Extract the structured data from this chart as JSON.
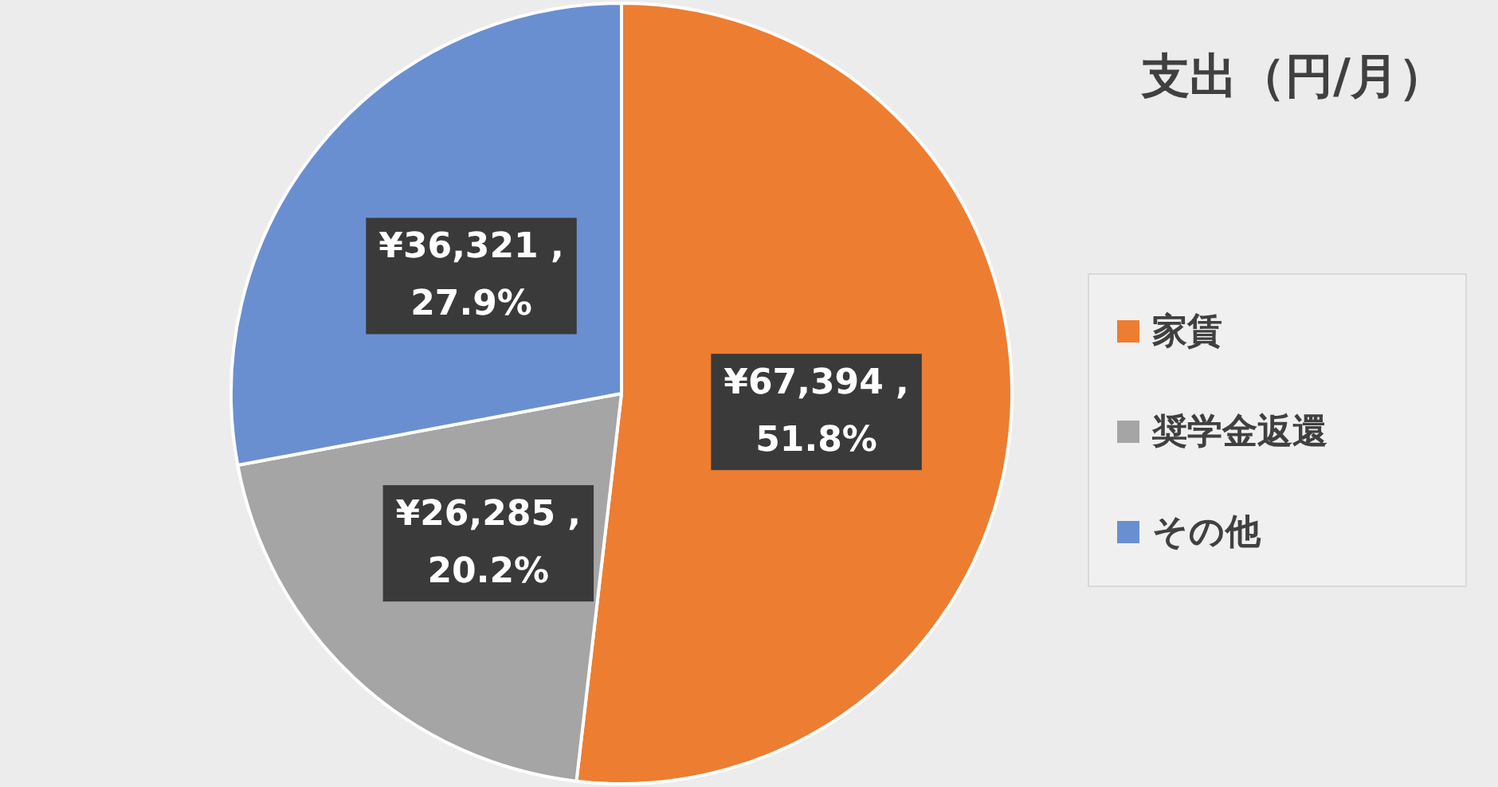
{
  "chart_data": {
    "type": "pie",
    "title": "支出（円/月）",
    "categories": [
      "家賃",
      "奨学金返還",
      "その他"
    ],
    "values": [
      67394,
      26285,
      36321
    ],
    "colors": [
      "#ed7d31",
      "#a5a5a5",
      "#6a8fd0"
    ],
    "value_labels": [
      "¥67,394 , 51.8%",
      "¥26,285 , 20.2%",
      "¥36,321 , 27.9%"
    ],
    "legend": "right"
  }
}
